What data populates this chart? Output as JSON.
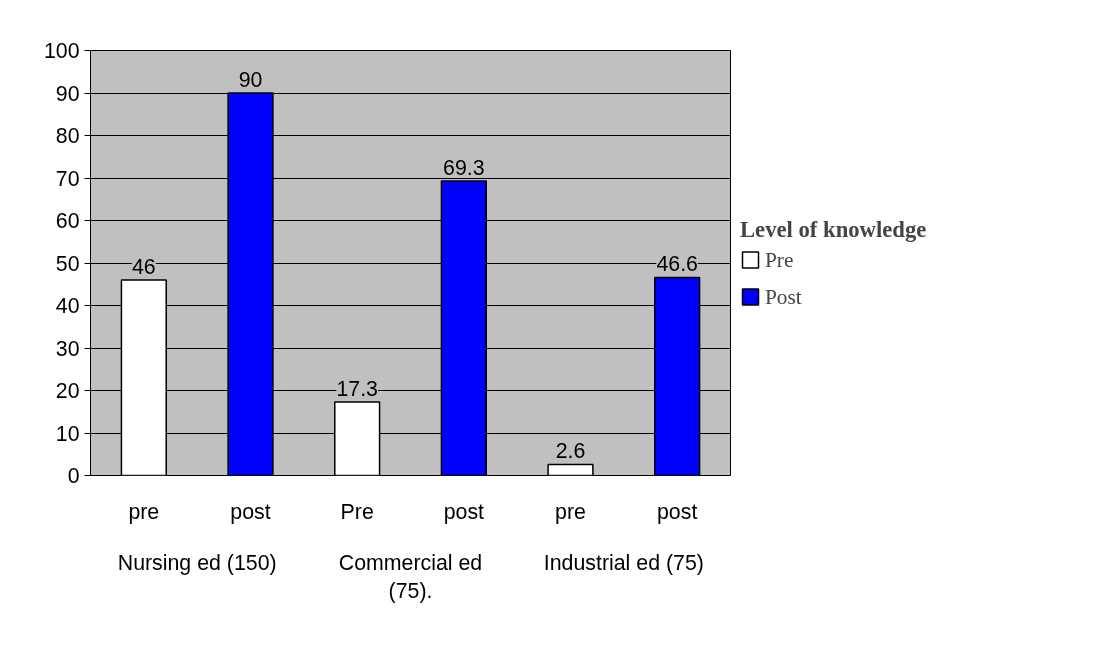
{
  "chart_data": {
    "type": "bar",
    "categories": [
      "pre",
      "post",
      "Pre",
      "post",
      "pre",
      "post"
    ],
    "series": [
      {
        "name": "Pre",
        "color": "#ffffff",
        "values": [
          46,
          null,
          17.3,
          null,
          2.6,
          null
        ]
      },
      {
        "name": "Post",
        "color": "#0000ff",
        "values": [
          null,
          90,
          null,
          69.3,
          null,
          46.6
        ]
      }
    ],
    "annotations": [
      "Nursing ed (150)",
      "Commercial ed (75).",
      "Industrial ed (75)"
    ],
    "legend_title": "Level of knowledge",
    "legend": "right",
    "data_labels": true,
    "grid": "y",
    "ylim": [
      0,
      100
    ],
    "yticks": [
      0,
      10,
      20,
      30,
      40,
      50,
      60,
      70,
      80,
      90,
      100
    ]
  }
}
